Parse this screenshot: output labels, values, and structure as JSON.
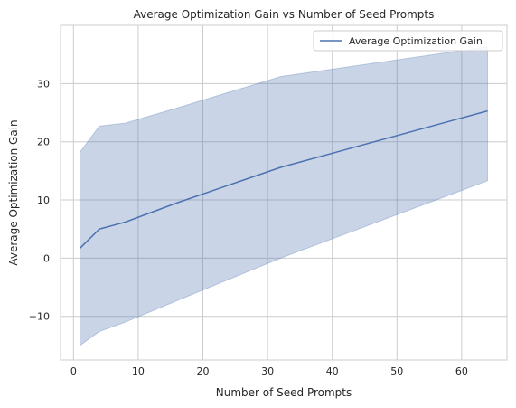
{
  "chart_data": {
    "type": "line",
    "title": "Average Optimization Gain vs Number of Seed Prompts",
    "xlabel": "Number of Seed Prompts",
    "ylabel": "Average Optimization Gain",
    "xlim": [
      -2,
      67
    ],
    "ylim": [
      -17.5,
      40
    ],
    "xticks": [
      0,
      10,
      20,
      30,
      40,
      50,
      60
    ],
    "yticks": [
      -10,
      0,
      10,
      20,
      30
    ],
    "grid": true,
    "legend_position": "top-right",
    "series": [
      {
        "name": "Average Optimization Gain",
        "color": "#4c72b0",
        "x": [
          1,
          4,
          8,
          16,
          32,
          64
        ],
        "y": [
          1.7,
          5.0,
          6.2,
          9.5,
          15.6,
          25.3
        ],
        "band_upper": [
          18.2,
          22.7,
          23.2,
          25.8,
          31.2,
          36.3
        ],
        "band_lower": [
          -15.0,
          -12.6,
          -11.0,
          -7.3,
          0.0,
          13.3
        ]
      }
    ]
  }
}
